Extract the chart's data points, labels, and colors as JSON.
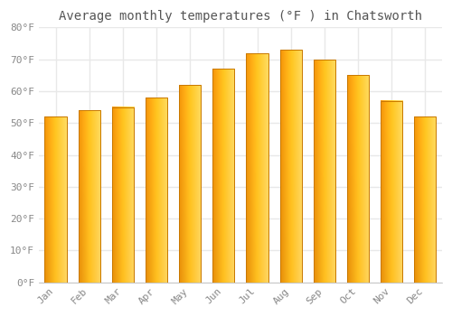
{
  "months": [
    "Jan",
    "Feb",
    "Mar",
    "Apr",
    "May",
    "Jun",
    "Jul",
    "Aug",
    "Sep",
    "Oct",
    "Nov",
    "Dec"
  ],
  "values": [
    52,
    54,
    55,
    58,
    62,
    67,
    72,
    73,
    70,
    65,
    57,
    52
  ],
  "bar_color_left": "#E8900A",
  "bar_color_mid": "#FFB600",
  "bar_color_right": "#FFD060",
  "bar_edge_color": "#C87800",
  "title": "Average monthly temperatures (°F ) in Chatsworth",
  "ylim": [
    0,
    80
  ],
  "ytick_step": 10,
  "background_color": "#ffffff",
  "plot_area_color": "#ffffff",
  "title_fontsize": 10,
  "tick_fontsize": 8,
  "grid_color": "#e8e8e8",
  "bar_width": 0.65
}
